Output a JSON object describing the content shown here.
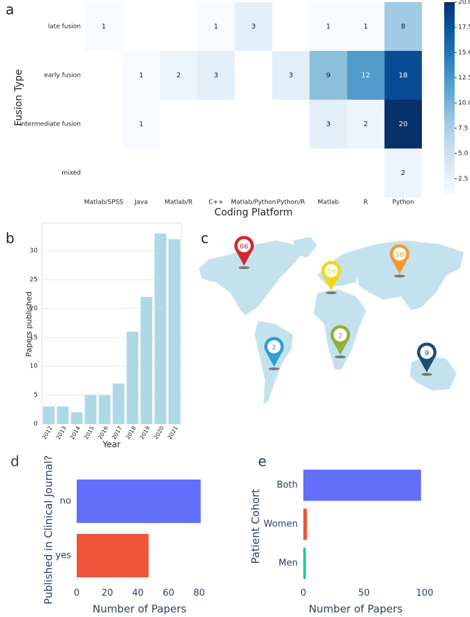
{
  "chart_data": [
    {
      "type": "heatmap",
      "panel_label": "a",
      "x_label": "Coding Platform",
      "y_label": "Fusion Type",
      "categories": [
        "Matlab/SPSS",
        "Java",
        "Matlab/R",
        "C++",
        "Matlab/Python",
        "Python/R",
        "Matlab",
        "R",
        "Python"
      ],
      "rows": [
        "late fusion",
        "early fusion",
        "intermediate fusion",
        "mixed"
      ],
      "values": [
        [
          1,
          null,
          null,
          1,
          3,
          null,
          1,
          1,
          8
        ],
        [
          null,
          1,
          2,
          3,
          null,
          3,
          9,
          12,
          18
        ],
        [
          null,
          1,
          null,
          null,
          null,
          null,
          3,
          2,
          20
        ],
        [
          null,
          null,
          null,
          null,
          null,
          null,
          null,
          null,
          2
        ]
      ],
      "colorscale": [
        "#f7fbff",
        "#deebf7",
        "#c6dbef",
        "#9ecae1",
        "#6baed6",
        "#4292c6",
        "#2171b5",
        "#08519c",
        "#08306b"
      ],
      "clim": [
        1,
        20
      ],
      "colorbar_ticks": [
        2.5,
        {
          "value": 5,
          "label": "5.0"
        },
        7.5,
        {
          "value": 10,
          "label": "10.0"
        },
        12.5,
        {
          "value": 15,
          "label": "15.0"
        },
        17.5,
        {
          "value": 20,
          "label": "20.0"
        }
      ]
    },
    {
      "type": "bar",
      "panel_label": "b",
      "x_label": "Year",
      "y_label": "Papers published",
      "categories": [
        "2012",
        "2013",
        "2014",
        "2015",
        "2016",
        "2017",
        "2018",
        "2019",
        "2020",
        "2021"
      ],
      "values": [
        3,
        3,
        2,
        5,
        5,
        7,
        16,
        22,
        33,
        32
      ],
      "color": "#add8e6",
      "ylim": [
        0,
        34.8
      ],
      "yticks": [
        0,
        5,
        10,
        15,
        20,
        25,
        30
      ],
      "grid": true
    },
    {
      "type": "map",
      "panel_label": "c",
      "values": [
        66,
        39,
        58,
        2,
        2,
        9
      ],
      "colors": [
        "#d1272e",
        "#f4d614",
        "#f29a2e",
        "#2b9fd6",
        "#8cb23c",
        "#1b4f72"
      ]
    },
    {
      "type": "hbar",
      "panel_label": "d",
      "x_label": "Number of Papers",
      "y_label": "Published in Clinical Journal?",
      "categories": [
        "no",
        "yes"
      ],
      "values": [
        81,
        47
      ],
      "colors": [
        "#636efa",
        "#ef553b"
      ],
      "xlim": [
        0,
        82
      ],
      "xticks": [
        0,
        20,
        40,
        60,
        80
      ]
    },
    {
      "type": "hbar",
      "panel_label": "e",
      "x_label": "Number of Papers",
      "y_label": "Patient Cohort",
      "categories": [
        "Both",
        "Women",
        "Men"
      ],
      "values": [
        97,
        3,
        2
      ],
      "colors": [
        "#636efa",
        "#ef553b",
        "#00cc96"
      ],
      "xlim": [
        0,
        100
      ],
      "xticks": [
        0,
        50,
        100
      ]
    }
  ]
}
